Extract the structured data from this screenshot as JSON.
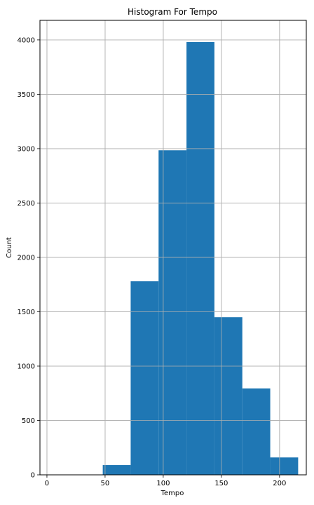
{
  "chart_data": {
    "type": "bar",
    "title": "Histogram For Tempo",
    "xlabel": "Tempo",
    "ylabel": "Count",
    "xlim": [
      -6,
      223
    ],
    "ylim": [
      0,
      4180
    ],
    "x_ticks": [
      0,
      50,
      100,
      150,
      200
    ],
    "y_ticks": [
      0,
      500,
      1000,
      1500,
      2000,
      2500,
      3000,
      3500,
      4000
    ],
    "grid": true,
    "bar_color": "#1f77b4",
    "bins": [
      {
        "x0": 48,
        "x1": 72,
        "count": 90
      },
      {
        "x0": 72,
        "x1": 96,
        "count": 1780
      },
      {
        "x0": 96,
        "x1": 120,
        "count": 2985
      },
      {
        "x0": 120,
        "x1": 144,
        "count": 3980
      },
      {
        "x0": 144,
        "x1": 168,
        "count": 1450
      },
      {
        "x0": 168,
        "x1": 192,
        "count": 795
      },
      {
        "x0": 192,
        "x1": 216,
        "count": 160
      }
    ]
  }
}
